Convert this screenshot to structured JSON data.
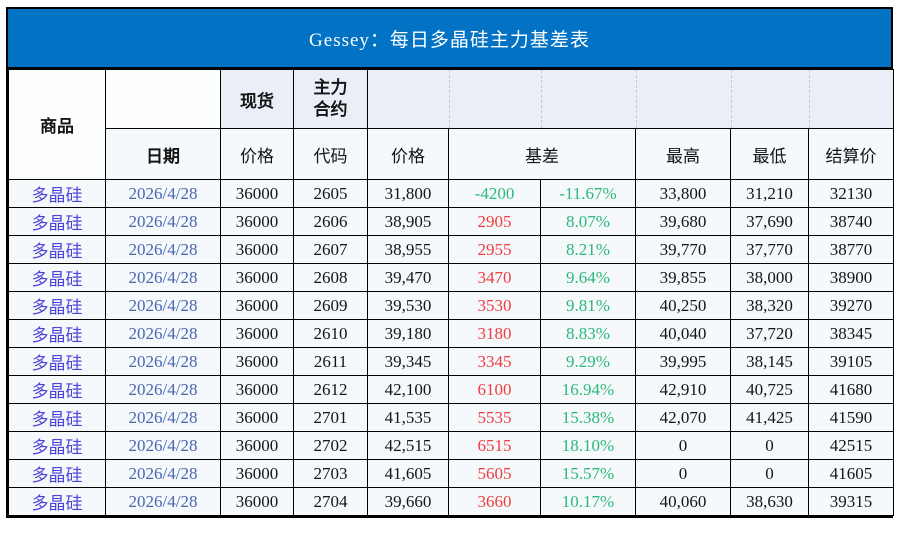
{
  "title": "Gessey：每日多晶硅主力基差表",
  "colors": {
    "title_bar": "#0272C4",
    "header_accent_bg": "#E9EEF7",
    "cell_bg": "#F5F9FC",
    "white_cell_bg": "#FDFEFE",
    "commodity_text": "#4C44DB",
    "date_text": "#4767B0",
    "basis_positive": "#F03C3C",
    "basis_negative": "#2CB878",
    "percent_text": "#2CB878",
    "grid_line": "#000000"
  },
  "header": {
    "commodity": "商品",
    "date": "日期",
    "spot": "现货",
    "main_contract_line1": "主力",
    "main_contract_line2": "合约",
    "spot_price": "价格",
    "code": "代码",
    "main_price": "价格",
    "basis": "基差",
    "high": "最高",
    "low": "最低",
    "settlement": "结算价"
  },
  "rows": [
    {
      "commodity": "多晶硅",
      "date": "2026/4/28",
      "spot": "36000",
      "code": "2605",
      "price": "31,800",
      "basis": "-4200",
      "basis_pct": "-11.67%",
      "high": "33,800",
      "low": "31,210",
      "settle": "32130"
    },
    {
      "commodity": "多晶硅",
      "date": "2026/4/28",
      "spot": "36000",
      "code": "2606",
      "price": "38,905",
      "basis": "2905",
      "basis_pct": "8.07%",
      "high": "39,680",
      "low": "37,690",
      "settle": "38740"
    },
    {
      "commodity": "多晶硅",
      "date": "2026/4/28",
      "spot": "36000",
      "code": "2607",
      "price": "38,955",
      "basis": "2955",
      "basis_pct": "8.21%",
      "high": "39,770",
      "low": "37,770",
      "settle": "38770"
    },
    {
      "commodity": "多晶硅",
      "date": "2026/4/28",
      "spot": "36000",
      "code": "2608",
      "price": "39,470",
      "basis": "3470",
      "basis_pct": "9.64%",
      "high": "39,855",
      "low": "38,000",
      "settle": "38900"
    },
    {
      "commodity": "多晶硅",
      "date": "2026/4/28",
      "spot": "36000",
      "code": "2609",
      "price": "39,530",
      "basis": "3530",
      "basis_pct": "9.81%",
      "high": "40,250",
      "low": "38,320",
      "settle": "39270"
    },
    {
      "commodity": "多晶硅",
      "date": "2026/4/28",
      "spot": "36000",
      "code": "2610",
      "price": "39,180",
      "basis": "3180",
      "basis_pct": "8.83%",
      "high": "40,040",
      "low": "37,720",
      "settle": "38345"
    },
    {
      "commodity": "多晶硅",
      "date": "2026/4/28",
      "spot": "36000",
      "code": "2611",
      "price": "39,345",
      "basis": "3345",
      "basis_pct": "9.29%",
      "high": "39,995",
      "low": "38,145",
      "settle": "39105"
    },
    {
      "commodity": "多晶硅",
      "date": "2026/4/28",
      "spot": "36000",
      "code": "2612",
      "price": "42,100",
      "basis": "6100",
      "basis_pct": "16.94%",
      "high": "42,910",
      "low": "40,725",
      "settle": "41680"
    },
    {
      "commodity": "多晶硅",
      "date": "2026/4/28",
      "spot": "36000",
      "code": "2701",
      "price": "41,535",
      "basis": "5535",
      "basis_pct": "15.38%",
      "high": "42,070",
      "low": "41,425",
      "settle": "41590"
    },
    {
      "commodity": "多晶硅",
      "date": "2026/4/28",
      "spot": "36000",
      "code": "2702",
      "price": "42,515",
      "basis": "6515",
      "basis_pct": "18.10%",
      "high": "0",
      "low": "0",
      "settle": "42515"
    },
    {
      "commodity": "多晶硅",
      "date": "2026/4/28",
      "spot": "36000",
      "code": "2703",
      "price": "41,605",
      "basis": "5605",
      "basis_pct": "15.57%",
      "high": "0",
      "low": "0",
      "settle": "41605"
    },
    {
      "commodity": "多晶硅",
      "date": "2026/4/28",
      "spot": "36000",
      "code": "2704",
      "price": "39,660",
      "basis": "3660",
      "basis_pct": "10.17%",
      "high": "40,060",
      "low": "38,630",
      "settle": "39315"
    }
  ],
  "chart_data": {
    "type": "table",
    "title": "Gessey：每日多晶硅主力基差表",
    "columns": [
      "商品",
      "日期",
      "现货价格",
      "主力合约代码",
      "主力合约价格",
      "基差",
      "基差%",
      "最高",
      "最低",
      "结算价"
    ],
    "rows": [
      [
        "多晶硅",
        "2026/4/28",
        36000,
        "2605",
        31800,
        -4200,
        "-11.67%",
        33800,
        31210,
        32130
      ],
      [
        "多晶硅",
        "2026/4/28",
        36000,
        "2606",
        38905,
        2905,
        "8.07%",
        39680,
        37690,
        38740
      ],
      [
        "多晶硅",
        "2026/4/28",
        36000,
        "2607",
        38955,
        2955,
        "8.21%",
        39770,
        37770,
        38770
      ],
      [
        "多晶硅",
        "2026/4/28",
        36000,
        "2608",
        39470,
        3470,
        "9.64%",
        39855,
        38000,
        38900
      ],
      [
        "多晶硅",
        "2026/4/28",
        36000,
        "2609",
        39530,
        3530,
        "9.81%",
        40250,
        38320,
        39270
      ],
      [
        "多晶硅",
        "2026/4/28",
        36000,
        "2610",
        39180,
        3180,
        "8.83%",
        40040,
        37720,
        38345
      ],
      [
        "多晶硅",
        "2026/4/28",
        36000,
        "2611",
        39345,
        3345,
        "9.29%",
        39995,
        38145,
        39105
      ],
      [
        "多晶硅",
        "2026/4/28",
        36000,
        "2612",
        42100,
        6100,
        "16.94%",
        42910,
        40725,
        41680
      ],
      [
        "多晶硅",
        "2026/4/28",
        36000,
        "2701",
        41535,
        5535,
        "15.38%",
        42070,
        41425,
        41590
      ],
      [
        "多晶硅",
        "2026/4/28",
        36000,
        "2702",
        42515,
        6515,
        "18.10%",
        0,
        0,
        42515
      ],
      [
        "多晶硅",
        "2026/4/28",
        36000,
        "2703",
        41605,
        5605,
        "15.57%",
        0,
        0,
        41605
      ],
      [
        "多晶硅",
        "2026/4/28",
        36000,
        "2704",
        39660,
        3660,
        "10.17%",
        40060,
        38630,
        39315
      ]
    ]
  }
}
